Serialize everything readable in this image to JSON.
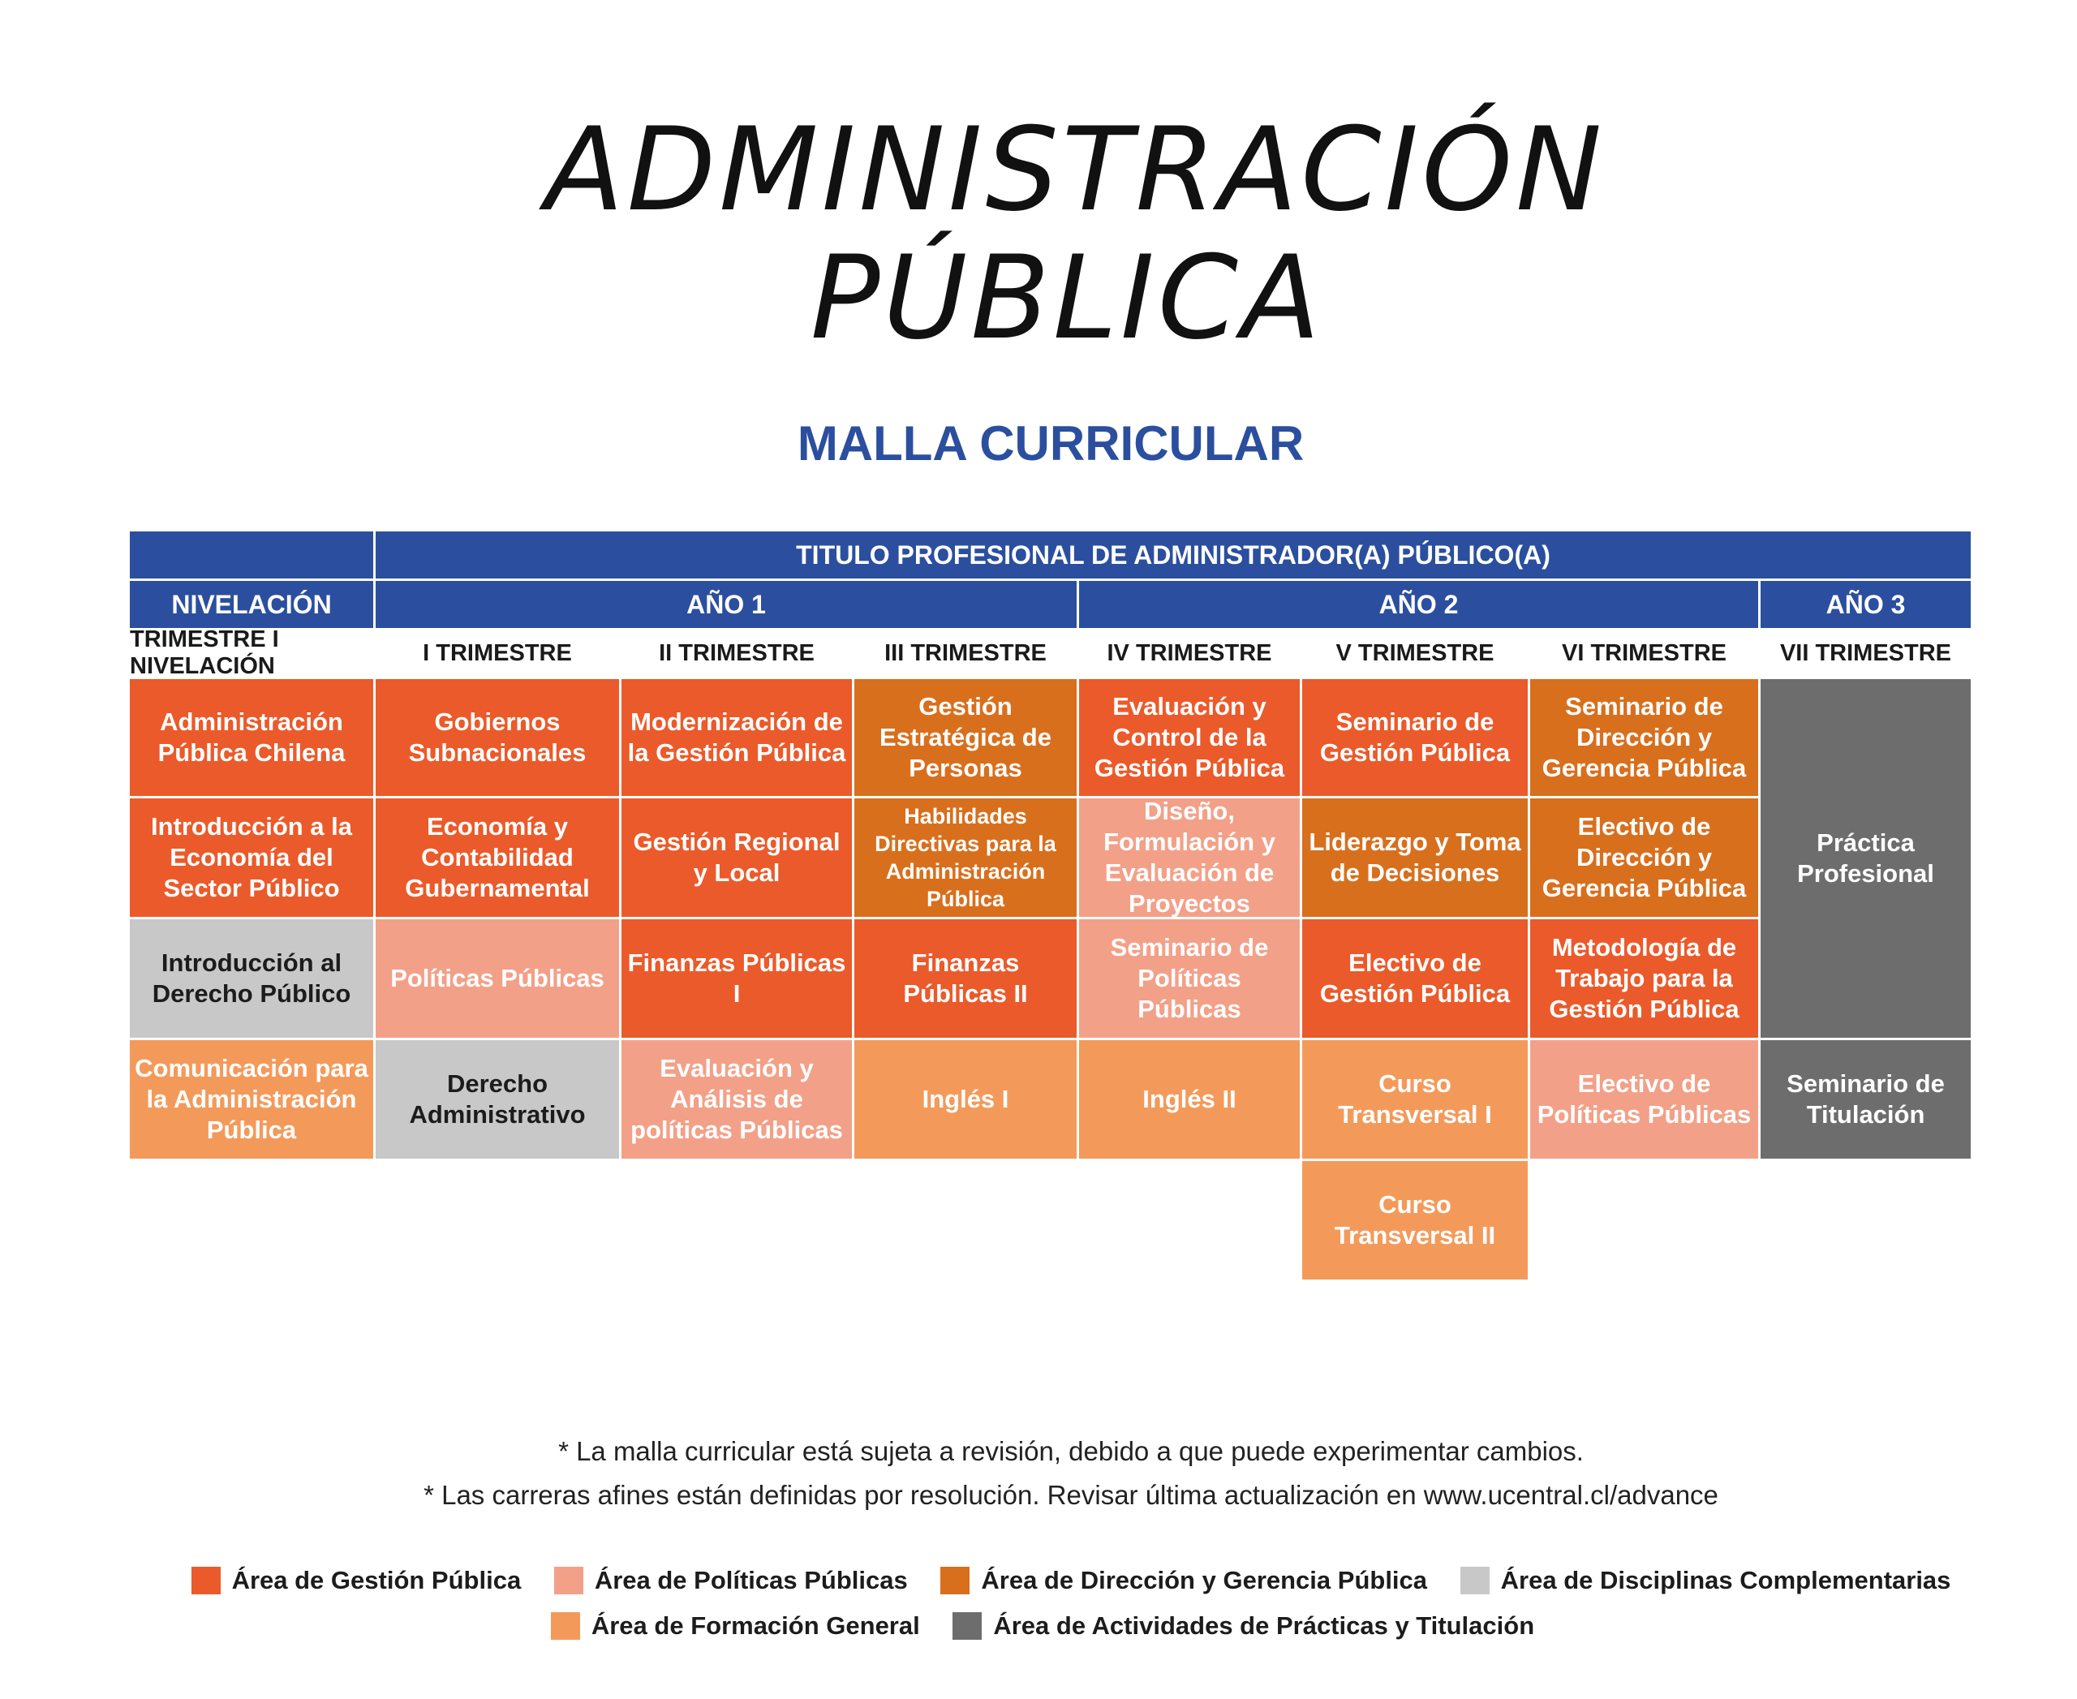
{
  "title": {
    "line1": "ADMINISTRACIÓN",
    "line2": "PÚBLICA"
  },
  "subtitle": "MALLA CURRICULAR",
  "headers": {
    "titulo": "TITULO PROFESIONAL DE ADMINISTRADOR(A) PÚBLICO(A)",
    "nivelacion": "NIVELACIÓN",
    "ano1": "AÑO 1",
    "ano2": "AÑO 2",
    "ano3": "AÑO 3"
  },
  "trimesters": [
    "TRIMESTRE I NIVELACIÓN",
    "I TRIMESTRE",
    "II TRIMESTRE",
    "III TRIMESTRE",
    "IV TRIMESTRE",
    "V TRIMESTRE",
    "VI TRIMESTRE",
    "VII TRIMESTRE"
  ],
  "courses": {
    "c0r0": "Administración Pública Chilena",
    "c0r1": "Introducción a la Economía del Sector Público",
    "c0r2": "Introducción al Derecho Público",
    "c0r3": "Comunicación para la Administración Pública",
    "c1r0": "Gobiernos Subnacionales",
    "c1r1": "Economía y Contabilidad Gubernamental",
    "c1r2": "Políticas Públicas",
    "c1r3": "Derecho Administrativo",
    "c2r0": "Modernización de la Gestión Pública",
    "c2r1": "Gestión Regional y Local",
    "c2r2": "Finanzas Públicas I",
    "c2r3": "Evaluación y Análisis de políticas Públicas",
    "c3r0": "Gestión Estratégica de Personas",
    "c3r1": "Habilidades Directivas para la Administración Pública",
    "c3r2": "Finanzas Públicas II",
    "c3r3": "Inglés I",
    "c4r0": "Evaluación y Control de la Gestión Pública",
    "c4r1": "Diseño, Formulación y Evaluación de Proyectos",
    "c4r2": "Seminario de Políticas Públicas",
    "c4r3": "Inglés II",
    "c5r0": "Seminario de Gestión Pública",
    "c5r1": "Liderazgo y Toma de Decisiones",
    "c5r2": "Electivo de Gestión Pública",
    "c5r3": "Curso Transversal I",
    "c5r4": "Curso Transversal II",
    "c6r0": "Seminario de Dirección y Gerencia Pública",
    "c6r1": "Electivo de Dirección y Gerencia Pública",
    "c6r2": "Metodología de Trabajo para la Gestión Pública",
    "c6r3": "Electivo de Políticas Públicas",
    "c7r0": "Práctica Profesional",
    "c7r3": "Seminario de Titulación"
  },
  "notes": [
    "* La  malla curricular está sujeta a revisión, debido a que puede experimentar cambios.",
    "* Las carreras afines están definidas por resolución. Revisar última actualización en www.ucentral.cl/advance"
  ],
  "legend": [
    {
      "label": "Área de Gestión Pública",
      "color": "#eb5a2a"
    },
    {
      "label": "Área de Políticas Públicas",
      "color": "#f3a088"
    },
    {
      "label": "Área de Dirección y Gerencia Pública",
      "color": "#d86f1d"
    },
    {
      "label": "Área de Disciplinas Complementarias",
      "color": "#c9c8c8"
    },
    {
      "label": "Área de Formación General",
      "color": "#f39a5b"
    },
    {
      "label": "Área de Actividades de Prácticas y Titulación",
      "color": "#6e6d6d"
    }
  ]
}
